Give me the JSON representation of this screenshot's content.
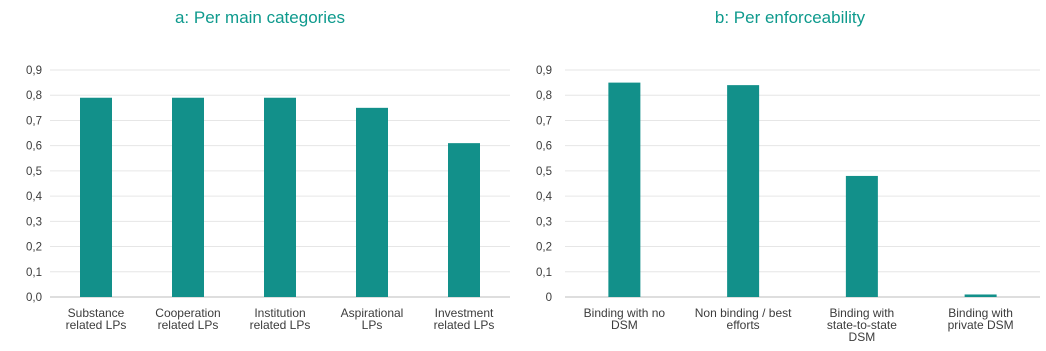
{
  "colors": {
    "bar": "#12908a",
    "title": "#0e9a8d"
  },
  "chart_data": [
    {
      "type": "bar",
      "title": "a: Per main categories",
      "categories": [
        [
          "Substance",
          "related LPs"
        ],
        [
          "Cooperation",
          "related LPs"
        ],
        [
          "Institution",
          "related LPs"
        ],
        [
          "Aspirational",
          "LPs"
        ],
        [
          "Investment",
          "related LPs"
        ]
      ],
      "values": [
        0.79,
        0.79,
        0.79,
        0.75,
        0.61
      ],
      "yticks": [
        "0,0",
        "0,1",
        "0,2",
        "0,3",
        "0,4",
        "0,5",
        "0,6",
        "0,7",
        "0,8",
        "0,9"
      ],
      "ylim": [
        0,
        0.9
      ],
      "grid": true
    },
    {
      "type": "bar",
      "title": "b: Per enforceability",
      "categories": [
        [
          "Binding with no",
          "DSM"
        ],
        [
          "Non binding / best",
          "efforts"
        ],
        [
          "Binding with",
          "state-to-state",
          "DSM"
        ],
        [
          "Binding with",
          "private DSM"
        ]
      ],
      "values": [
        0.85,
        0.84,
        0.48,
        0.01
      ],
      "yticks": [
        "0",
        "0,1",
        "0,2",
        "0,3",
        "0,4",
        "0,5",
        "0,6",
        "0,7",
        "0,8",
        "0,9"
      ],
      "ylim": [
        0,
        0.9
      ],
      "grid": true
    }
  ]
}
